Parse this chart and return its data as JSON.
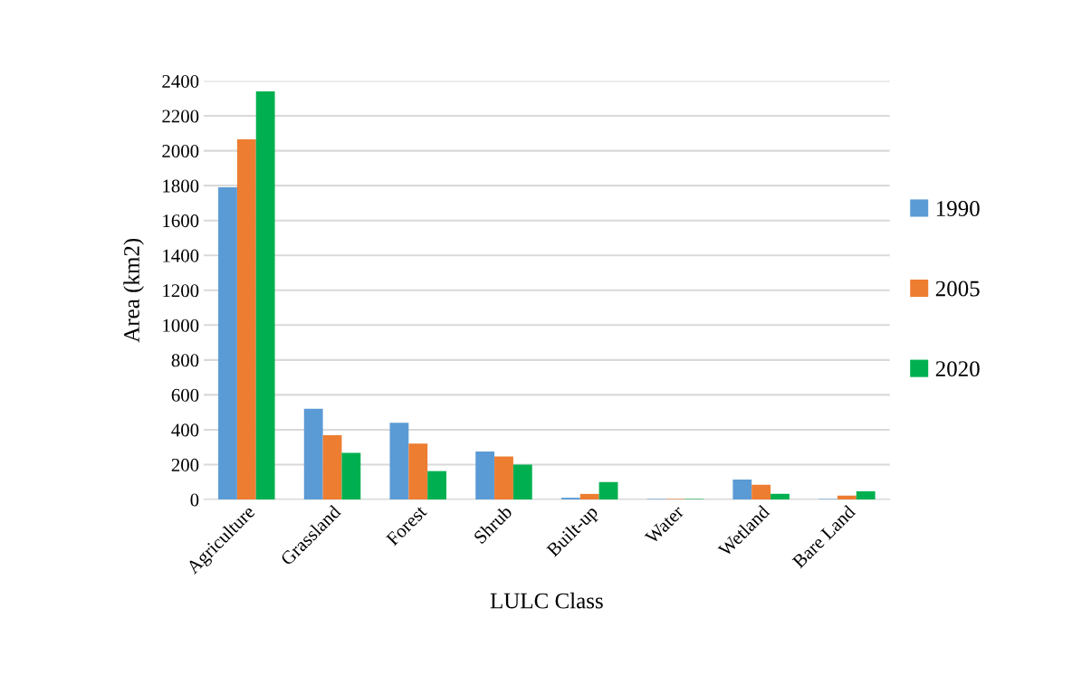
{
  "chart_data": {
    "type": "bar",
    "xlabel": "LULC Class",
    "ylabel": "Area (km2)",
    "categories": [
      "Agriculture",
      "Grassland",
      "Forest",
      "Shrub",
      "Built-up",
      "Water",
      "Wetland",
      "Bare Land"
    ],
    "series": [
      {
        "name": "1990",
        "color": "#5b9bd5",
        "values": [
          1790,
          520,
          440,
          275,
          10,
          3,
          115,
          3
        ]
      },
      {
        "name": "2005",
        "color": "#ed7d31",
        "values": [
          2065,
          368,
          320,
          247,
          32,
          3,
          84,
          22
        ]
      },
      {
        "name": "2020",
        "color": "#00b050",
        "values": [
          2340,
          268,
          163,
          200,
          100,
          3,
          32,
          47
        ]
      }
    ],
    "ylim": [
      0,
      2400
    ],
    "yticks": [
      0,
      200,
      400,
      600,
      800,
      1000,
      1200,
      1400,
      1600,
      1800,
      2000,
      2200,
      2400
    ],
    "grid": "y",
    "legend": "right"
  }
}
